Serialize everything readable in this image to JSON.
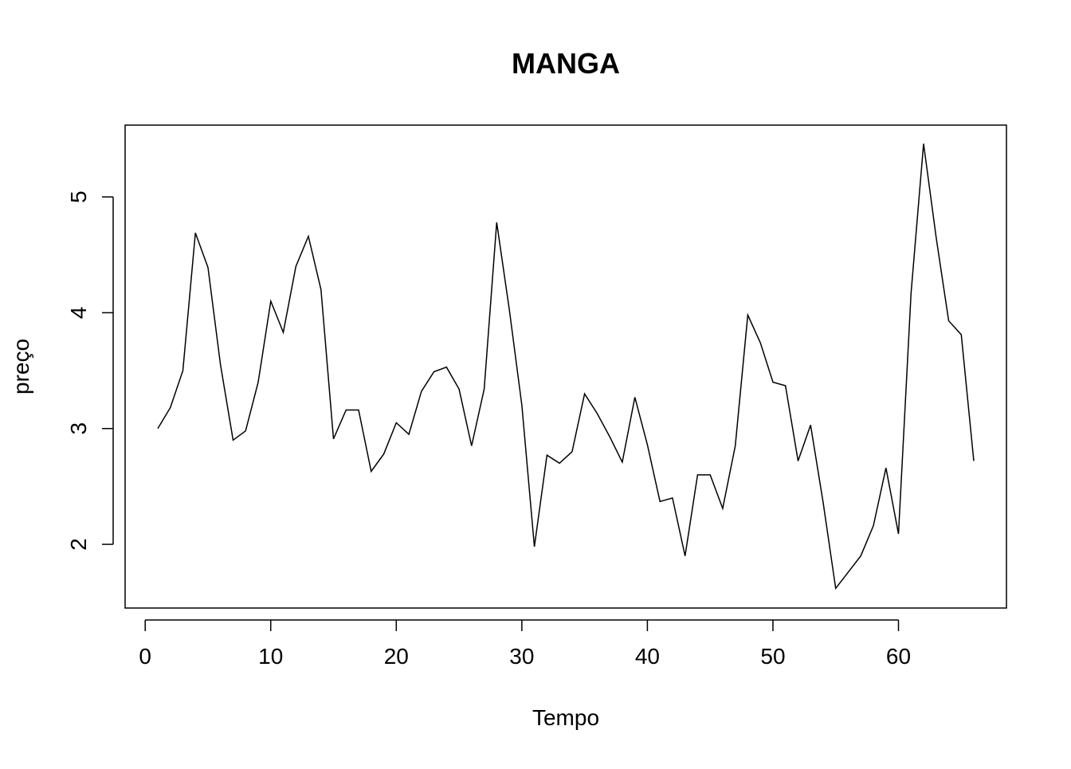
{
  "chart_data": {
    "type": "line",
    "title": "MANGA",
    "xlabel": "Tempo",
    "ylabel": "preço",
    "xlim": [
      -1.6,
      68.6
    ],
    "ylim": [
      1.45,
      5.62
    ],
    "xticks": [
      0,
      10,
      20,
      30,
      40,
      50,
      60
    ],
    "yticks": [
      2,
      3,
      4,
      5
    ],
    "grid": false,
    "legend": "none",
    "color": "#000000",
    "x": [
      1,
      2,
      3,
      4,
      5,
      6,
      7,
      8,
      9,
      10,
      11,
      12,
      13,
      14,
      15,
      16,
      17,
      18,
      19,
      20,
      21,
      22,
      23,
      24,
      25,
      26,
      27,
      28,
      29,
      30,
      31,
      32,
      33,
      34,
      35,
      36,
      37,
      38,
      39,
      40,
      41,
      42,
      43,
      44,
      45,
      46,
      47,
      48,
      49,
      50,
      51,
      52,
      53,
      54,
      55,
      56,
      57,
      58,
      59,
      60,
      61,
      62,
      63,
      64,
      65,
      66
    ],
    "y": [
      3.0,
      3.18,
      3.5,
      4.69,
      4.39,
      3.55,
      2.9,
      2.98,
      3.4,
      4.1,
      3.83,
      4.4,
      4.66,
      4.2,
      2.91,
      3.16,
      3.16,
      2.63,
      2.78,
      3.05,
      2.95,
      3.32,
      3.49,
      3.53,
      3.34,
      2.85,
      3.34,
      4.78,
      4.03,
      3.2,
      1.98,
      2.77,
      2.7,
      2.8,
      3.3,
      3.13,
      2.93,
      2.71,
      3.27,
      2.86,
      2.37,
      2.4,
      1.9,
      2.6,
      2.6,
      2.31,
      2.85,
      3.98,
      3.74,
      3.4,
      3.37,
      2.72,
      3.03,
      2.36,
      1.62,
      1.76,
      1.9,
      2.16,
      2.66,
      2.09,
      4.17,
      5.46,
      4.65,
      3.93,
      3.81,
      2.72
    ]
  }
}
